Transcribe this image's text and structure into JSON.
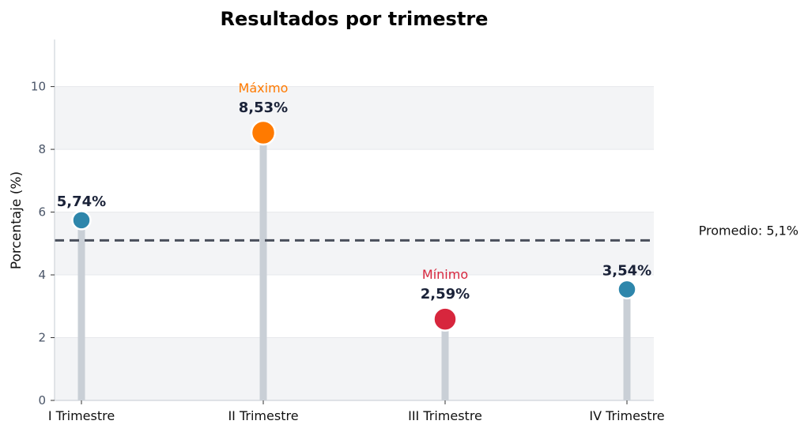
{
  "chart_data": {
    "type": "lollipop",
    "title": "Resultados por trimestre",
    "xlabel": "",
    "ylabel": "Porcentaje (%)",
    "categories": [
      "I Trimestre",
      "II Trimestre",
      "III Trimestre",
      "IV Trimestre"
    ],
    "values": [
      5.74,
      8.53,
      2.59,
      3.54
    ],
    "value_labels": [
      "5,74%",
      "8,53%",
      "2,59%",
      "3,54%"
    ],
    "ylim": [
      0,
      11.5
    ],
    "yticks": [
      0,
      2,
      4,
      6,
      8,
      10
    ],
    "average": {
      "value": 5.1,
      "label": "Promedio: 5,1%"
    },
    "annotations": [
      {
        "index": 1,
        "text": "Máximo"
      },
      {
        "index": 2,
        "text": "Mínimo"
      }
    ],
    "colors": {
      "default": "#2e86ab",
      "max": "#ff7a00",
      "min": "#d7263d",
      "stem": "#c9cfd6",
      "band": "#f3f4f6",
      "avg_line": "#4a4f5c"
    }
  }
}
